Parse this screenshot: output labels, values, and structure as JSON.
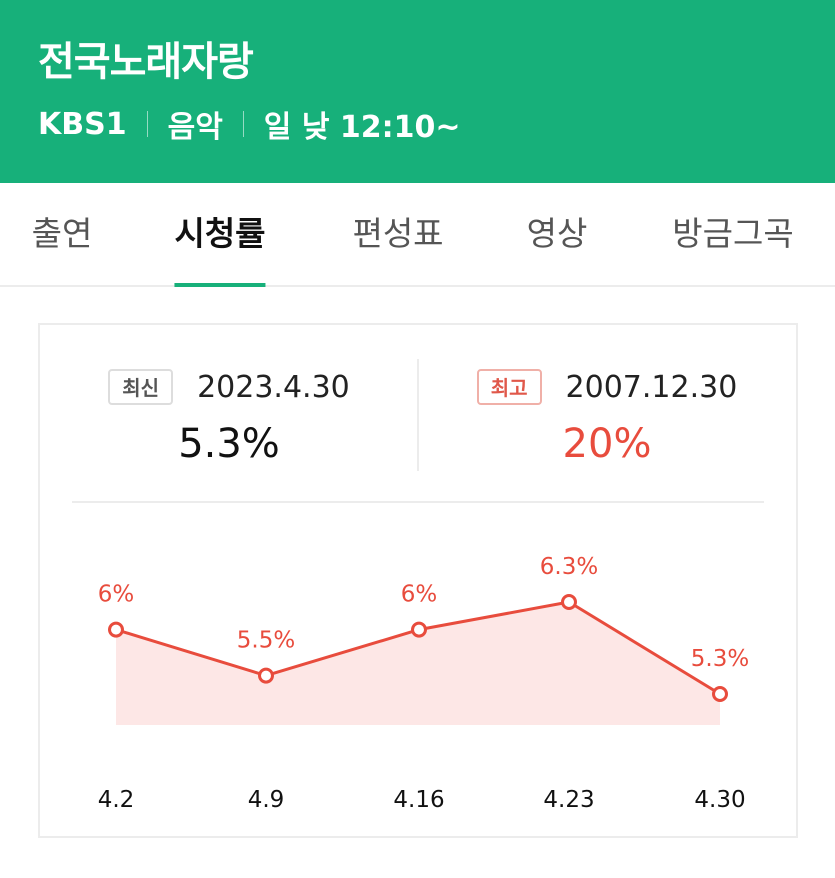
{
  "program": {
    "title": "전국노래자랑",
    "channel": "KBS1",
    "genre": "음악",
    "schedule": "일 낮 12:10~"
  },
  "tabs": [
    {
      "label": "출연",
      "active": false
    },
    {
      "label": "시청률",
      "active": true
    },
    {
      "label": "편성표",
      "active": false
    },
    {
      "label": "영상",
      "active": false
    },
    {
      "label": "방금그곡",
      "active": false
    }
  ],
  "ratings": {
    "latest": {
      "badge": "최신",
      "date": "2023.4.30",
      "value": "5.3%"
    },
    "best": {
      "badge": "최고",
      "date": "2007.12.30",
      "value": "20%"
    }
  },
  "colors": {
    "brand": "#17b07a",
    "accent": "#e84c3d"
  },
  "chart_data": {
    "type": "area",
    "x": [
      "4.2",
      "4.9",
      "4.16",
      "4.23",
      "4.30"
    ],
    "values": [
      6,
      5.5,
      6,
      6.3,
      5.3
    ],
    "data_labels": [
      "6%",
      "5.5%",
      "6%",
      "6.3%",
      "5.3%"
    ],
    "ylim": [
      5.0,
      6.6
    ],
    "grid": false
  }
}
